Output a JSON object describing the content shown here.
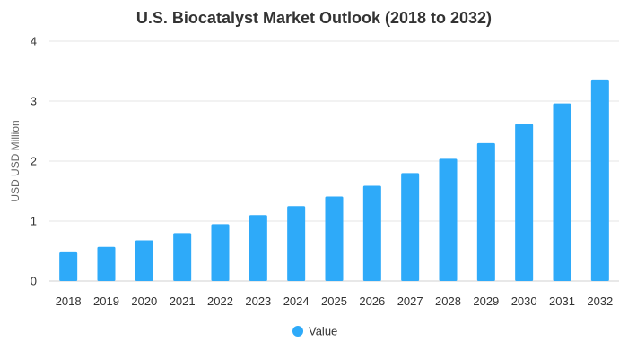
{
  "chart_data": {
    "type": "bar",
    "title": "U.S. Biocatalyst Market Outlook (2018 to 2032)",
    "xlabel": "",
    "ylabel": "USD USD Million",
    "categories": [
      "2018",
      "2019",
      "2020",
      "2021",
      "2022",
      "2023",
      "2024",
      "2025",
      "2026",
      "2027",
      "2028",
      "2029",
      "2030",
      "2031",
      "2032"
    ],
    "series": [
      {
        "name": "Value",
        "values": [
          0.48,
          0.57,
          0.68,
          0.8,
          0.95,
          1.1,
          1.25,
          1.41,
          1.59,
          1.8,
          2.04,
          2.3,
          2.62,
          2.96,
          3.36
        ],
        "color": "#2eaaf9"
      }
    ],
    "ylim": [
      0,
      4
    ],
    "yticks": [
      "0",
      "1",
      "2",
      "3",
      "4"
    ],
    "grid": true,
    "legend_position": "bottom-center"
  }
}
